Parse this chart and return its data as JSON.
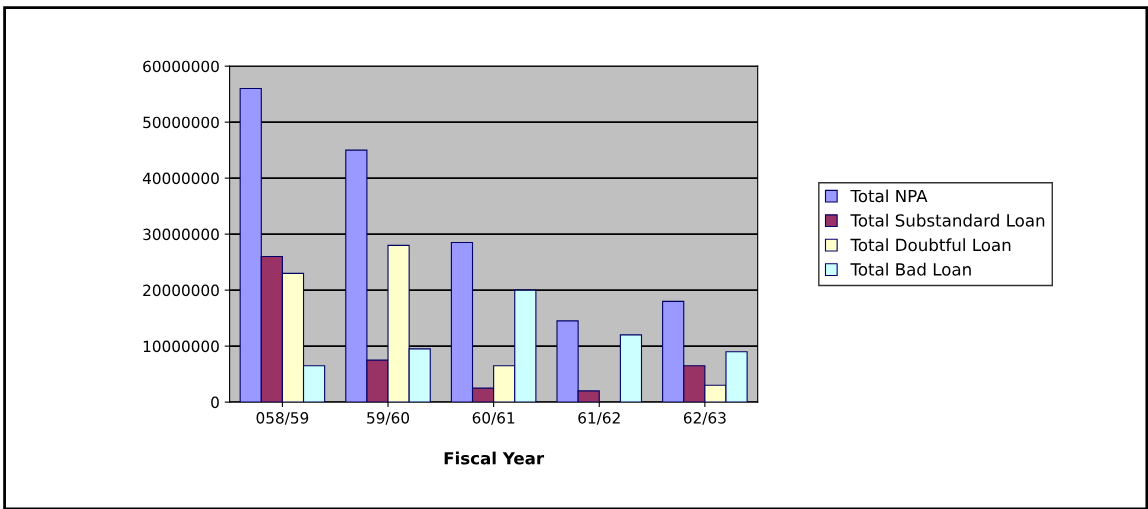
{
  "chart_data": {
    "type": "bar",
    "xlabel": "Fiscal Year",
    "categories": [
      "058/59",
      "59/60",
      "60/61",
      "61/62",
      "62/63"
    ],
    "series": [
      {
        "name": "Total NPA",
        "color": "#9999ff",
        "values": [
          56000000,
          45000000,
          28500000,
          14500000,
          18000000
        ]
      },
      {
        "name": "Total Substandard Loan",
        "color": "#993366",
        "values": [
          26000000,
          7500000,
          2500000,
          2000000,
          6500000
        ]
      },
      {
        "name": "Total Doubtful Loan",
        "color": "#ffffcc",
        "values": [
          23000000,
          28000000,
          6500000,
          null,
          3000000
        ]
      },
      {
        "name": "Total Bad Loan",
        "color": "#ccffff",
        "values": [
          6500000,
          9500000,
          20000000,
          12000000,
          9000000
        ]
      }
    ],
    "ylim": [
      0,
      60000000
    ],
    "yticks": [
      0,
      10000000,
      20000000,
      30000000,
      40000000,
      50000000,
      60000000
    ],
    "grid": "y",
    "legend": "right"
  }
}
